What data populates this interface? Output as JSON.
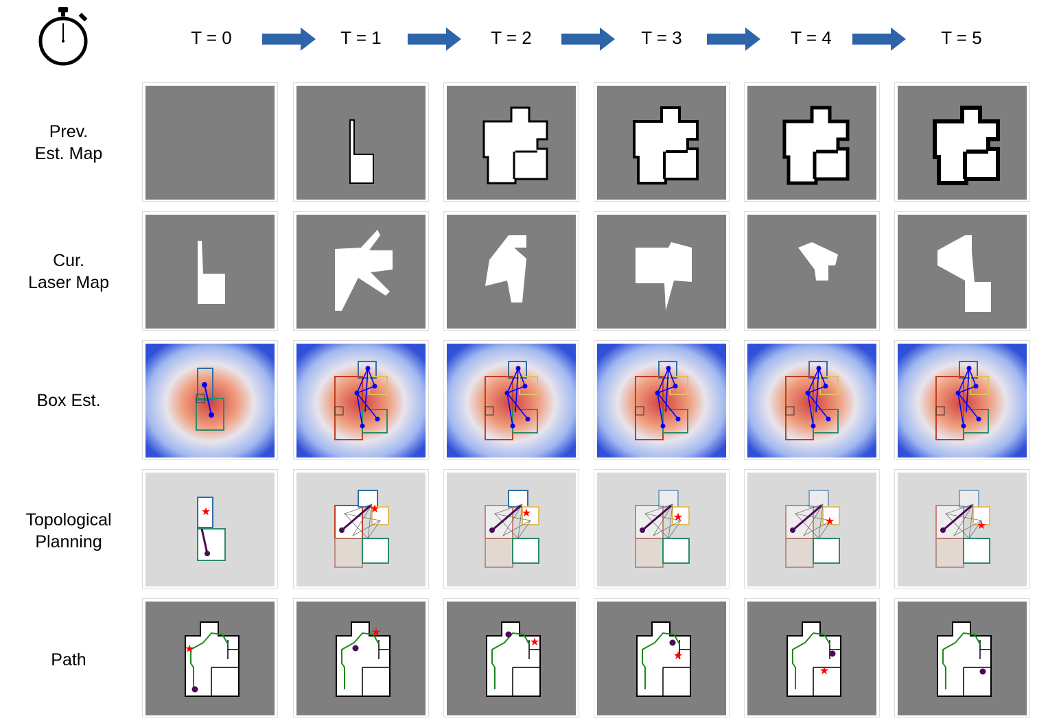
{
  "time_steps": [
    "T = 0",
    "T = 1",
    "T = 2",
    "T = 3",
    "T = 4",
    "T = 5"
  ],
  "rows": [
    {
      "key": "prev_map",
      "lines": [
        "Prev.",
        "Est. Map"
      ]
    },
    {
      "key": "laser_map",
      "lines": [
        "Cur.",
        "Laser Map"
      ]
    },
    {
      "key": "box_est",
      "lines": [
        "Box Est."
      ]
    },
    {
      "key": "topo",
      "lines": [
        "Topological",
        "Planning"
      ]
    },
    {
      "key": "path",
      "lines": [
        "Path"
      ]
    }
  ],
  "icons": {
    "stopwatch": "stopwatch-icon",
    "arrow": "right-arrow-icon"
  },
  "colors": {
    "arrow": "#2e64a8",
    "map_bg": "#7f7f7f",
    "free": "#ffffff",
    "topo_bg": "#d9d9d9",
    "node": "#0000ff",
    "path": "#1a8a1a",
    "robot": "#4b0a55",
    "goal": "#ff0000"
  }
}
